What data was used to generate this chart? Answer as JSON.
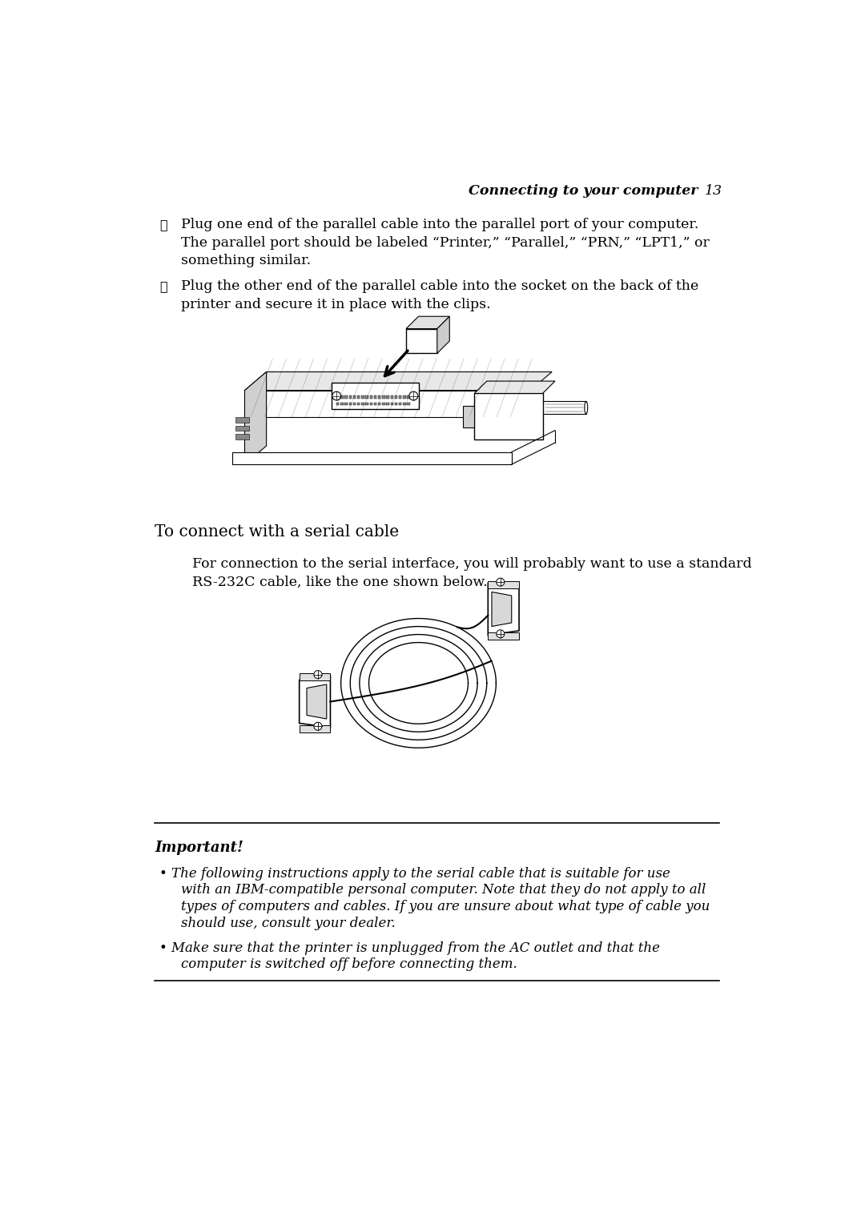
{
  "bg_color": "#ffffff",
  "text_color": "#000000",
  "page_width": 10.8,
  "page_height": 15.29,
  "dpi": 100,
  "header_italic_bold": "Connecting to your computer",
  "header_page": "13",
  "checkbox": "☐",
  "bullet1_l1": "Plug one end of the parallel cable into the parallel port of your computer.",
  "bullet1_l2": "The parallel port should be labeled “Printer,” “Parallel,” “PRN,” “LPT1,” or",
  "bullet1_l3": "something similar.",
  "bullet2_l1": "Plug the other end of the parallel cable into the socket on the back of the",
  "bullet2_l2": "printer and secure it in place with the clips.",
  "section_heading": "To connect with a serial cable",
  "serial_l1": "For connection to the serial interface, you will probably want to use a standard",
  "serial_l2": "RS-232C cable, like the one shown below.",
  "important_label": "Important!",
  "imp_b1_l1": "• The following instructions apply to the serial cable that is suitable for use",
  "imp_b1_l2": "with an IBM-compatible personal computer. Note that they do not apply to all",
  "imp_b1_l3": "types of computers and cables. If you are unsure about what type of cable you",
  "imp_b1_l4": "should use, consult your dealer.",
  "imp_b2_l1": "• Make sure that the printer is unplugged from the AC outlet and that the",
  "imp_b2_l2": "computer is switched off before connecting them.",
  "lm": 0.75,
  "rm": 9.85,
  "indent_bullet": 1.05,
  "indent_body": 1.35,
  "body_fs": 12.5,
  "header_fs": 12.5,
  "section_fs": 14.5,
  "important_fs": 12.0
}
